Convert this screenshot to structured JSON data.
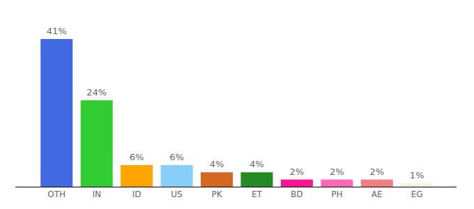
{
  "chart_data": {
    "type": "bar",
    "categories": [
      "OTH",
      "IN",
      "ID",
      "US",
      "PK",
      "ET",
      "BD",
      "PH",
      "AE",
      "EG"
    ],
    "values": [
      41,
      24,
      6,
      6,
      4,
      4,
      2,
      2,
      2,
      1
    ],
    "value_labels": [
      "41%",
      "24%",
      "6%",
      "6%",
      "4%",
      "4%",
      "2%",
      "2%",
      "2%",
      "1%"
    ],
    "colors": [
      "#4169e1",
      "#32cd32",
      "#ffa500",
      "#87cefa",
      "#d2691e",
      "#228b22",
      "#ff1493",
      "#ff69b4",
      "#f08080",
      "#faf0e6"
    ],
    "ylim": [
      0,
      41
    ],
    "data_labels": true,
    "tick_labels": "x",
    "grid": false
  }
}
